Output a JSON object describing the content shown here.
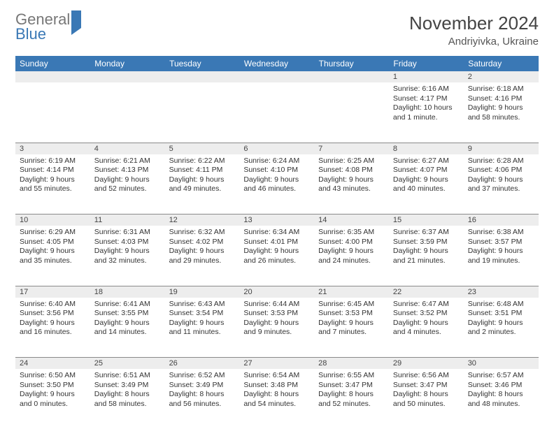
{
  "brand": {
    "part1": "General",
    "part2": "Blue"
  },
  "title": "November 2024",
  "location": "Andriyivka, Ukraine",
  "colors": {
    "header_bg": "#3a78b5",
    "header_fg": "#ffffff",
    "daynum_bg": "#ededed",
    "border": "#8a8a8a",
    "text": "#333333"
  },
  "days": [
    "Sunday",
    "Monday",
    "Tuesday",
    "Wednesday",
    "Thursday",
    "Friday",
    "Saturday"
  ],
  "weeks": [
    [
      null,
      null,
      null,
      null,
      null,
      {
        "n": "1",
        "sr": "Sunrise: 6:16 AM",
        "ss": "Sunset: 4:17 PM",
        "dl": "Daylight: 10 hours and 1 minute."
      },
      {
        "n": "2",
        "sr": "Sunrise: 6:18 AM",
        "ss": "Sunset: 4:16 PM",
        "dl": "Daylight: 9 hours and 58 minutes."
      }
    ],
    [
      {
        "n": "3",
        "sr": "Sunrise: 6:19 AM",
        "ss": "Sunset: 4:14 PM",
        "dl": "Daylight: 9 hours and 55 minutes."
      },
      {
        "n": "4",
        "sr": "Sunrise: 6:21 AM",
        "ss": "Sunset: 4:13 PM",
        "dl": "Daylight: 9 hours and 52 minutes."
      },
      {
        "n": "5",
        "sr": "Sunrise: 6:22 AM",
        "ss": "Sunset: 4:11 PM",
        "dl": "Daylight: 9 hours and 49 minutes."
      },
      {
        "n": "6",
        "sr": "Sunrise: 6:24 AM",
        "ss": "Sunset: 4:10 PM",
        "dl": "Daylight: 9 hours and 46 minutes."
      },
      {
        "n": "7",
        "sr": "Sunrise: 6:25 AM",
        "ss": "Sunset: 4:08 PM",
        "dl": "Daylight: 9 hours and 43 minutes."
      },
      {
        "n": "8",
        "sr": "Sunrise: 6:27 AM",
        "ss": "Sunset: 4:07 PM",
        "dl": "Daylight: 9 hours and 40 minutes."
      },
      {
        "n": "9",
        "sr": "Sunrise: 6:28 AM",
        "ss": "Sunset: 4:06 PM",
        "dl": "Daylight: 9 hours and 37 minutes."
      }
    ],
    [
      {
        "n": "10",
        "sr": "Sunrise: 6:29 AM",
        "ss": "Sunset: 4:05 PM",
        "dl": "Daylight: 9 hours and 35 minutes."
      },
      {
        "n": "11",
        "sr": "Sunrise: 6:31 AM",
        "ss": "Sunset: 4:03 PM",
        "dl": "Daylight: 9 hours and 32 minutes."
      },
      {
        "n": "12",
        "sr": "Sunrise: 6:32 AM",
        "ss": "Sunset: 4:02 PM",
        "dl": "Daylight: 9 hours and 29 minutes."
      },
      {
        "n": "13",
        "sr": "Sunrise: 6:34 AM",
        "ss": "Sunset: 4:01 PM",
        "dl": "Daylight: 9 hours and 26 minutes."
      },
      {
        "n": "14",
        "sr": "Sunrise: 6:35 AM",
        "ss": "Sunset: 4:00 PM",
        "dl": "Daylight: 9 hours and 24 minutes."
      },
      {
        "n": "15",
        "sr": "Sunrise: 6:37 AM",
        "ss": "Sunset: 3:59 PM",
        "dl": "Daylight: 9 hours and 21 minutes."
      },
      {
        "n": "16",
        "sr": "Sunrise: 6:38 AM",
        "ss": "Sunset: 3:57 PM",
        "dl": "Daylight: 9 hours and 19 minutes."
      }
    ],
    [
      {
        "n": "17",
        "sr": "Sunrise: 6:40 AM",
        "ss": "Sunset: 3:56 PM",
        "dl": "Daylight: 9 hours and 16 minutes."
      },
      {
        "n": "18",
        "sr": "Sunrise: 6:41 AM",
        "ss": "Sunset: 3:55 PM",
        "dl": "Daylight: 9 hours and 14 minutes."
      },
      {
        "n": "19",
        "sr": "Sunrise: 6:43 AM",
        "ss": "Sunset: 3:54 PM",
        "dl": "Daylight: 9 hours and 11 minutes."
      },
      {
        "n": "20",
        "sr": "Sunrise: 6:44 AM",
        "ss": "Sunset: 3:53 PM",
        "dl": "Daylight: 9 hours and 9 minutes."
      },
      {
        "n": "21",
        "sr": "Sunrise: 6:45 AM",
        "ss": "Sunset: 3:53 PM",
        "dl": "Daylight: 9 hours and 7 minutes."
      },
      {
        "n": "22",
        "sr": "Sunrise: 6:47 AM",
        "ss": "Sunset: 3:52 PM",
        "dl": "Daylight: 9 hours and 4 minutes."
      },
      {
        "n": "23",
        "sr": "Sunrise: 6:48 AM",
        "ss": "Sunset: 3:51 PM",
        "dl": "Daylight: 9 hours and 2 minutes."
      }
    ],
    [
      {
        "n": "24",
        "sr": "Sunrise: 6:50 AM",
        "ss": "Sunset: 3:50 PM",
        "dl": "Daylight: 9 hours and 0 minutes."
      },
      {
        "n": "25",
        "sr": "Sunrise: 6:51 AM",
        "ss": "Sunset: 3:49 PM",
        "dl": "Daylight: 8 hours and 58 minutes."
      },
      {
        "n": "26",
        "sr": "Sunrise: 6:52 AM",
        "ss": "Sunset: 3:49 PM",
        "dl": "Daylight: 8 hours and 56 minutes."
      },
      {
        "n": "27",
        "sr": "Sunrise: 6:54 AM",
        "ss": "Sunset: 3:48 PM",
        "dl": "Daylight: 8 hours and 54 minutes."
      },
      {
        "n": "28",
        "sr": "Sunrise: 6:55 AM",
        "ss": "Sunset: 3:47 PM",
        "dl": "Daylight: 8 hours and 52 minutes."
      },
      {
        "n": "29",
        "sr": "Sunrise: 6:56 AM",
        "ss": "Sunset: 3:47 PM",
        "dl": "Daylight: 8 hours and 50 minutes."
      },
      {
        "n": "30",
        "sr": "Sunrise: 6:57 AM",
        "ss": "Sunset: 3:46 PM",
        "dl": "Daylight: 8 hours and 48 minutes."
      }
    ]
  ]
}
